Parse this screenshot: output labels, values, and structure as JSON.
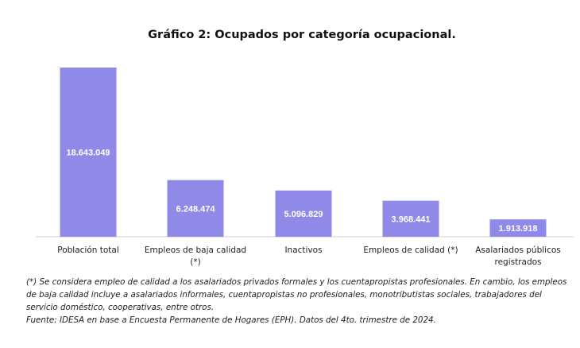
{
  "chart_data": {
    "type": "bar",
    "title": "Gráfico 2: Ocupados por categoría ocupacional.",
    "categories": [
      [
        "Población total"
      ],
      [
        "Empleos de baja calidad",
        "(*)"
      ],
      [
        "Inactivos"
      ],
      [
        "Empleos de calidad (*)"
      ],
      [
        "Asalariados públicos",
        "registrados"
      ]
    ],
    "values": [
      18643049,
      6248474,
      5096829,
      3968441,
      1913918
    ],
    "value_labels": [
      "18.643.049",
      "6.248.474",
      "5.096.829",
      "3.968.441",
      "1.913.918"
    ],
    "xlabel": "",
    "ylabel": "",
    "ylim": [
      0,
      18643049
    ],
    "grid": false,
    "bar_color": "#8f8ae8",
    "label_color": "#ffffff",
    "baseline_color": "#cfcfcf"
  },
  "notes": {
    "footnote": "(*) Se considera empleo de calidad a los asalariados privados formales y los cuentapropistas profesionales. En cambio, los empleos de baja calidad incluye a asalariados informales, cuentapropistas no profesionales, monotributistas sociales, trabajadores del servicio doméstico, cooperativas, entre otros.",
    "source": "Fuente: IDESA en base a Encuesta Permanente de Hogares (EPH). Datos del 4to. trimestre de 2024."
  }
}
